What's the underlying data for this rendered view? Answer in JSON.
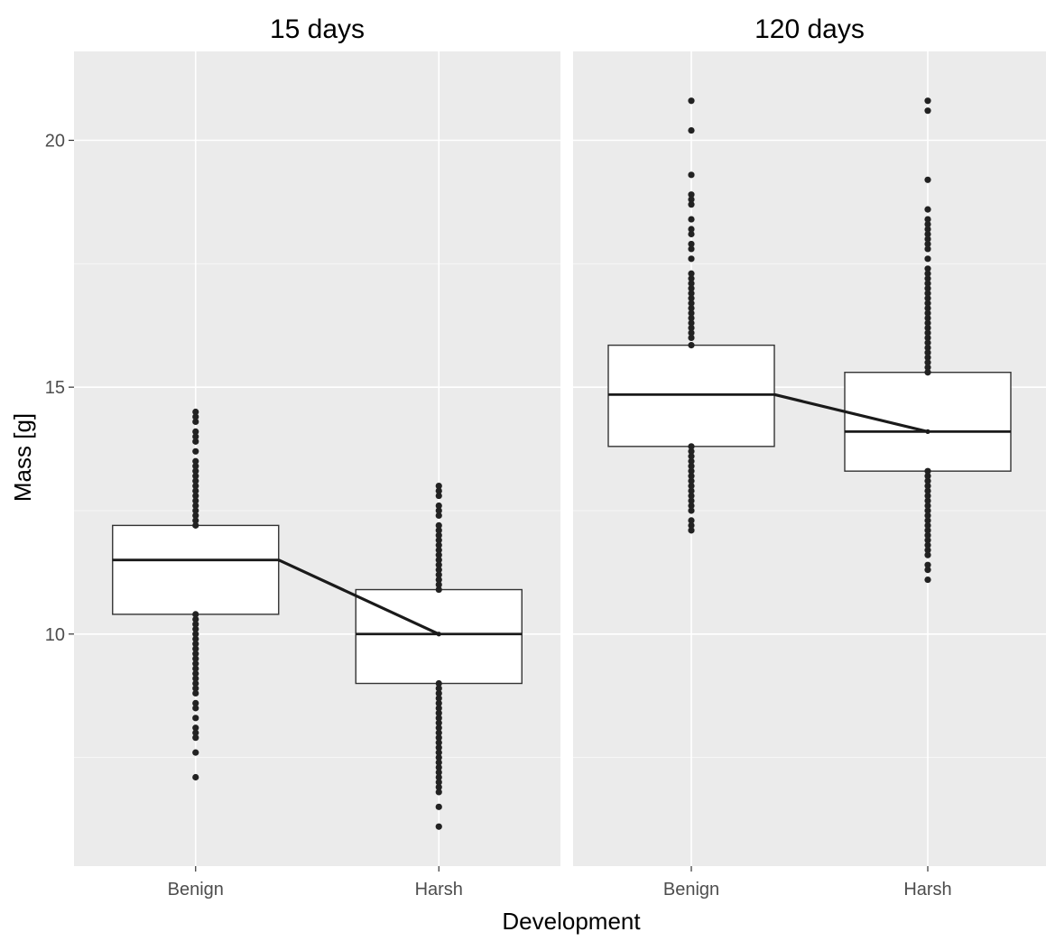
{
  "chart_data": {
    "type": "box",
    "xlabel": "Development",
    "ylabel": "Mass [g]",
    "categories": [
      "Benign",
      "Harsh"
    ],
    "ylim": [
      5.3,
      21.8
    ],
    "y_ticks": [
      10,
      15,
      20
    ],
    "grid": true,
    "panels": [
      {
        "title": "15 days",
        "boxes": [
          {
            "category": "Benign",
            "q1": 10.4,
            "median": 11.5,
            "q3": 12.2,
            "points": [
              7.1,
              7.6,
              7.9,
              8.0,
              8.1,
              8.3,
              8.5,
              8.6,
              8.8,
              8.9,
              9.0,
              9.1,
              9.2,
              9.3,
              9.4,
              9.5,
              9.6,
              9.7,
              9.8,
              9.9,
              10.0,
              10.1,
              10.2,
              10.3,
              10.4,
              12.2,
              12.3,
              12.4,
              12.5,
              12.6,
              12.7,
              12.8,
              12.9,
              13.0,
              13.1,
              13.2,
              13.3,
              13.4,
              13.5,
              13.7,
              13.9,
              14.0,
              14.1,
              14.3,
              14.4,
              14.5
            ]
          },
          {
            "category": "Harsh",
            "q1": 9.0,
            "median": 10.0,
            "q3": 10.9,
            "points": [
              6.1,
              6.5,
              6.8,
              6.9,
              7.0,
              7.1,
              7.2,
              7.3,
              7.4,
              7.5,
              7.6,
              7.7,
              7.8,
              7.9,
              8.0,
              8.1,
              8.2,
              8.3,
              8.4,
              8.5,
              8.6,
              8.7,
              8.8,
              8.9,
              9.0,
              10.9,
              11.0,
              11.1,
              11.2,
              11.3,
              11.4,
              11.5,
              11.6,
              11.7,
              11.8,
              11.9,
              12.0,
              12.1,
              12.2,
              12.4,
              12.5,
              12.6,
              12.8,
              12.9,
              13.0
            ]
          }
        ]
      },
      {
        "title": "120 days",
        "boxes": [
          {
            "category": "Benign",
            "q1": 13.8,
            "median": 14.85,
            "q3": 15.85,
            "points": [
              12.1,
              12.2,
              12.3,
              12.5,
              12.6,
              12.7,
              12.8,
              12.9,
              13.0,
              13.1,
              13.2,
              13.3,
              13.4,
              13.5,
              13.6,
              13.7,
              13.8,
              15.85,
              16.0,
              16.1,
              16.2,
              16.3,
              16.4,
              16.5,
              16.6,
              16.7,
              16.8,
              16.9,
              17.0,
              17.1,
              17.2,
              17.3,
              17.6,
              17.8,
              17.9,
              18.1,
              18.2,
              18.4,
              18.7,
              18.8,
              18.9,
              19.3,
              20.2,
              20.8
            ]
          },
          {
            "category": "Harsh",
            "q1": 13.3,
            "median": 14.1,
            "q3": 15.3,
            "points": [
              11.1,
              11.3,
              11.4,
              11.6,
              11.7,
              11.8,
              11.9,
              12.0,
              12.1,
              12.2,
              12.3,
              12.4,
              12.5,
              12.6,
              12.7,
              12.8,
              12.9,
              13.0,
              13.1,
              13.2,
              13.3,
              15.3,
              15.4,
              15.5,
              15.6,
              15.7,
              15.8,
              15.9,
              16.0,
              16.1,
              16.2,
              16.3,
              16.4,
              16.5,
              16.6,
              16.7,
              16.8,
              16.9,
              17.0,
              17.1,
              17.2,
              17.3,
              17.4,
              17.6,
              17.8,
              17.9,
              18.0,
              18.1,
              18.2,
              18.3,
              18.4,
              18.6,
              19.2,
              20.6,
              20.8
            ]
          }
        ]
      }
    ],
    "colors": {
      "panel_bg": "#EBEBEB",
      "grid": "#FFFFFF",
      "box_fill": "#FFFFFF",
      "box_stroke": "#333333",
      "point": "#222222",
      "trend_line": "#1A1A1A",
      "tick_text": "#4D4D4D",
      "title_text": "#000000"
    }
  }
}
